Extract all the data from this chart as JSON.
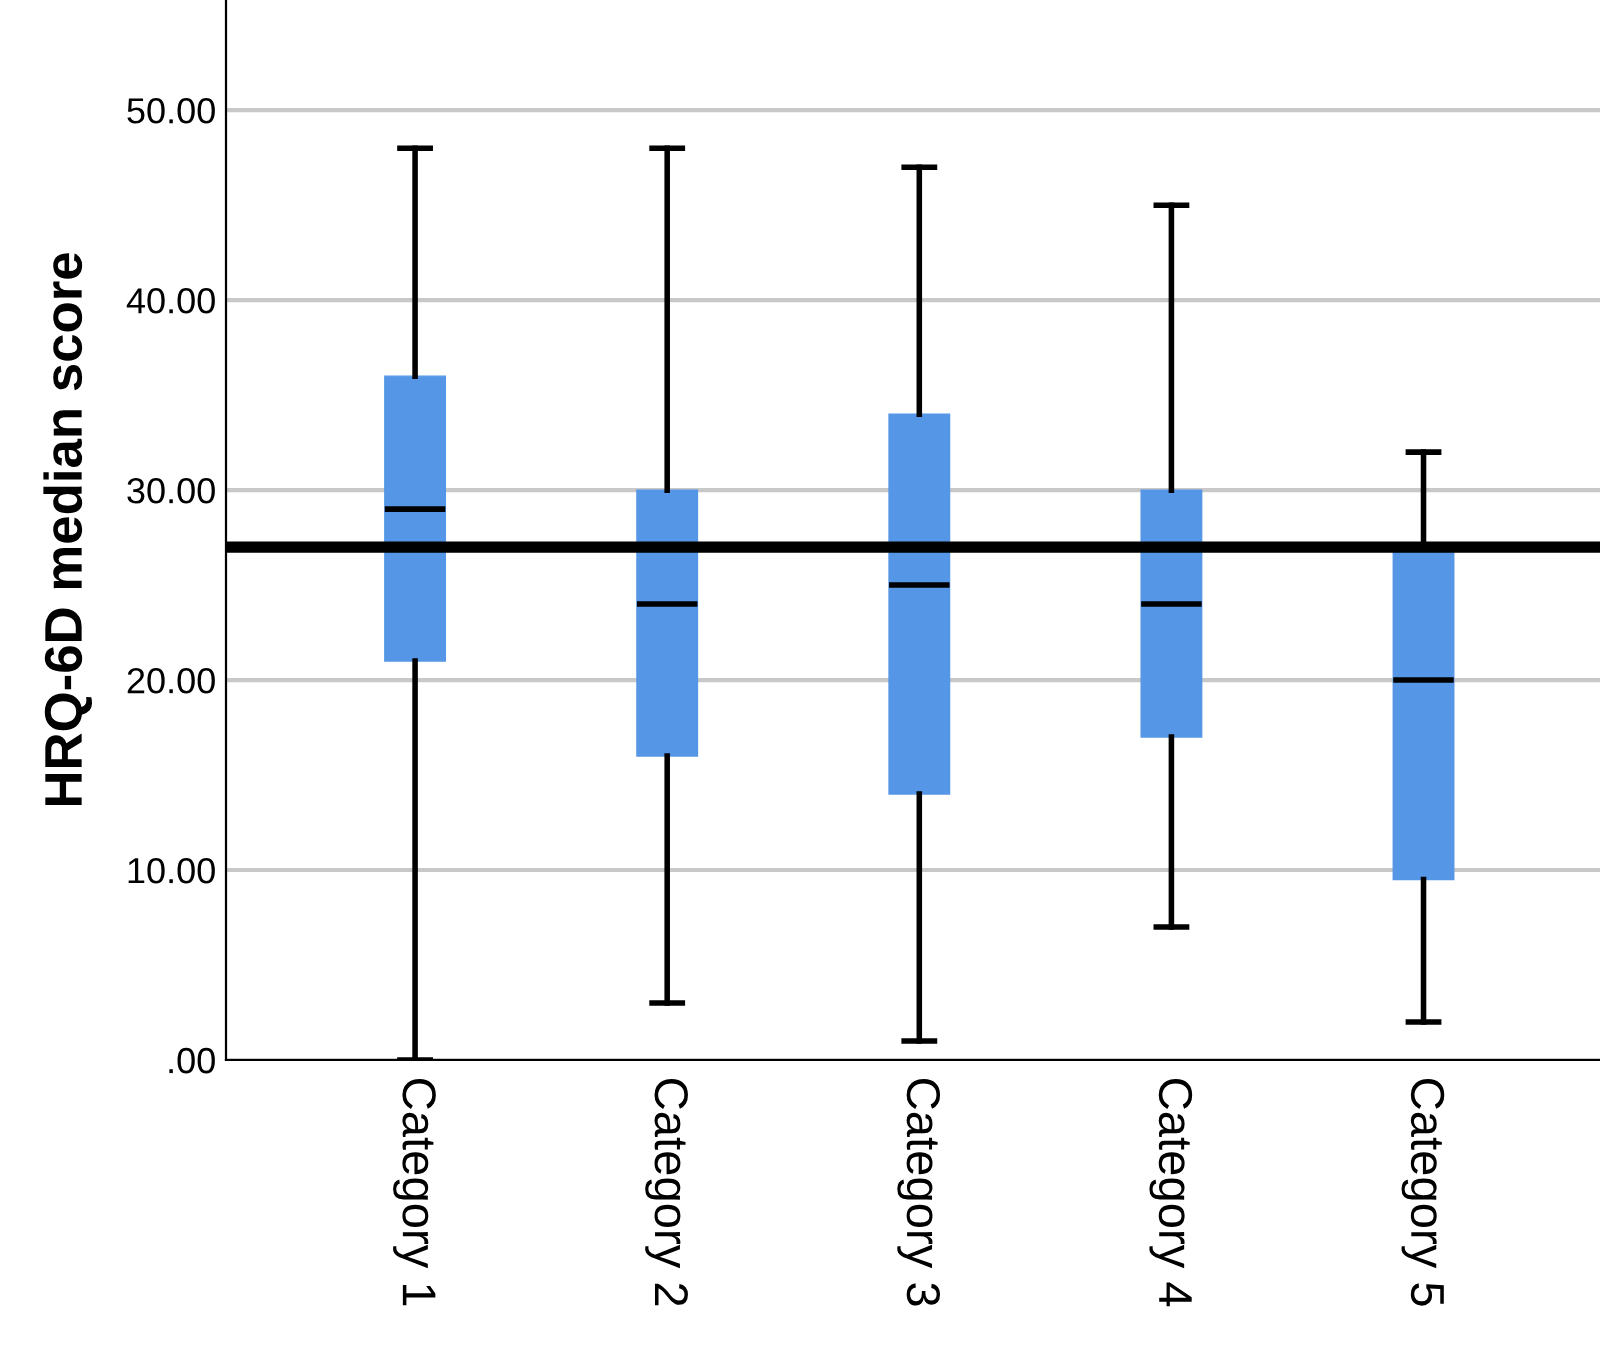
{
  "chart_data": {
    "type": "box",
    "ylabel": "HRQ-6D median score",
    "categories": [
      "Category 1",
      "Category 2",
      "Category 3",
      "Category 4",
      "Category 5"
    ],
    "boxes": [
      {
        "low": 0,
        "q1": 21,
        "median": 29,
        "q3": 36,
        "high": 48
      },
      {
        "low": 3,
        "q1": 16,
        "median": 24,
        "q3": 30,
        "high": 48
      },
      {
        "low": 1,
        "q1": 14,
        "median": 25,
        "q3": 34,
        "high": 47
      },
      {
        "low": 7,
        "q1": 17,
        "median": 24,
        "q3": 30,
        "high": 45
      },
      {
        "low": 2,
        "q1": 9.5,
        "median": 20,
        "q3": 27,
        "high": 32
      }
    ],
    "color": "#5596e6",
    "ylim": [
      0,
      55.8
    ],
    "yticks": [
      {
        "value": 0,
        "label": ".00"
      },
      {
        "value": 10,
        "label": "10.00"
      },
      {
        "value": 20,
        "label": "20.00"
      },
      {
        "value": 30,
        "label": "30.00"
      },
      {
        "value": 40,
        "label": "40.00"
      },
      {
        "value": 50,
        "label": "50.00"
      }
    ],
    "grid": "y",
    "ref_lines": [
      {
        "axis": "y",
        "value": 27,
        "color": "#000000"
      }
    ]
  }
}
